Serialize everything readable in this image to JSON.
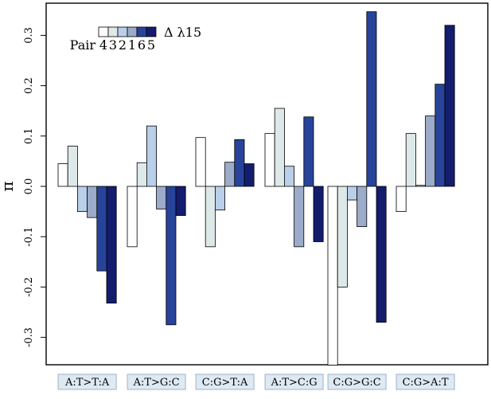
{
  "chart_data": {
    "type": "bar",
    "ylabel": "π",
    "ylim": [
      -0.36,
      0.36
    ],
    "yticks": [
      -0.3,
      -0.2,
      -0.1,
      0.0,
      0.1,
      0.2,
      0.3
    ],
    "ytick_labels": [
      "-0.3",
      "-0.2",
      "-0.1",
      "0.0",
      "0.1",
      "0.2",
      "0.3"
    ],
    "grid": false,
    "legend_placement": "top-left",
    "legend": {
      "title": "Pair",
      "entry_labels": [
        "4",
        "3",
        "2",
        "1",
        "6",
        "5"
      ],
      "delta_label": "Δ λ15"
    },
    "categories": [
      "A:T>T:A",
      "A:T>G:C",
      "C:G>T:A",
      "A:T>C:G",
      "C:G>G:C",
      "C:G>A:T"
    ],
    "series": [
      {
        "name": "4",
        "color": "#ffffff",
        "values": [
          0.045,
          -0.12,
          0.097,
          0.105,
          -0.355,
          -0.05
        ]
      },
      {
        "name": "3",
        "color": "#dde9e8",
        "values": [
          0.08,
          0.047,
          -0.12,
          0.155,
          -0.2,
          0.105
        ]
      },
      {
        "name": "2",
        "color": "#b9cfea",
        "values": [
          -0.05,
          0.12,
          -0.047,
          0.04,
          -0.027,
          0.002
        ]
      },
      {
        "name": "1",
        "color": "#9babc9",
        "values": [
          -0.062,
          -0.045,
          0.048,
          -0.12,
          -0.08,
          0.14
        ]
      },
      {
        "name": "6",
        "color": "#27449a",
        "values": [
          -0.168,
          -0.275,
          0.093,
          0.138,
          0.347,
          0.203
        ]
      },
      {
        "name": "5",
        "color": "#141c6e",
        "values": [
          -0.232,
          -0.058,
          0.045,
          -0.11,
          -0.27,
          0.32
        ]
      }
    ]
  }
}
